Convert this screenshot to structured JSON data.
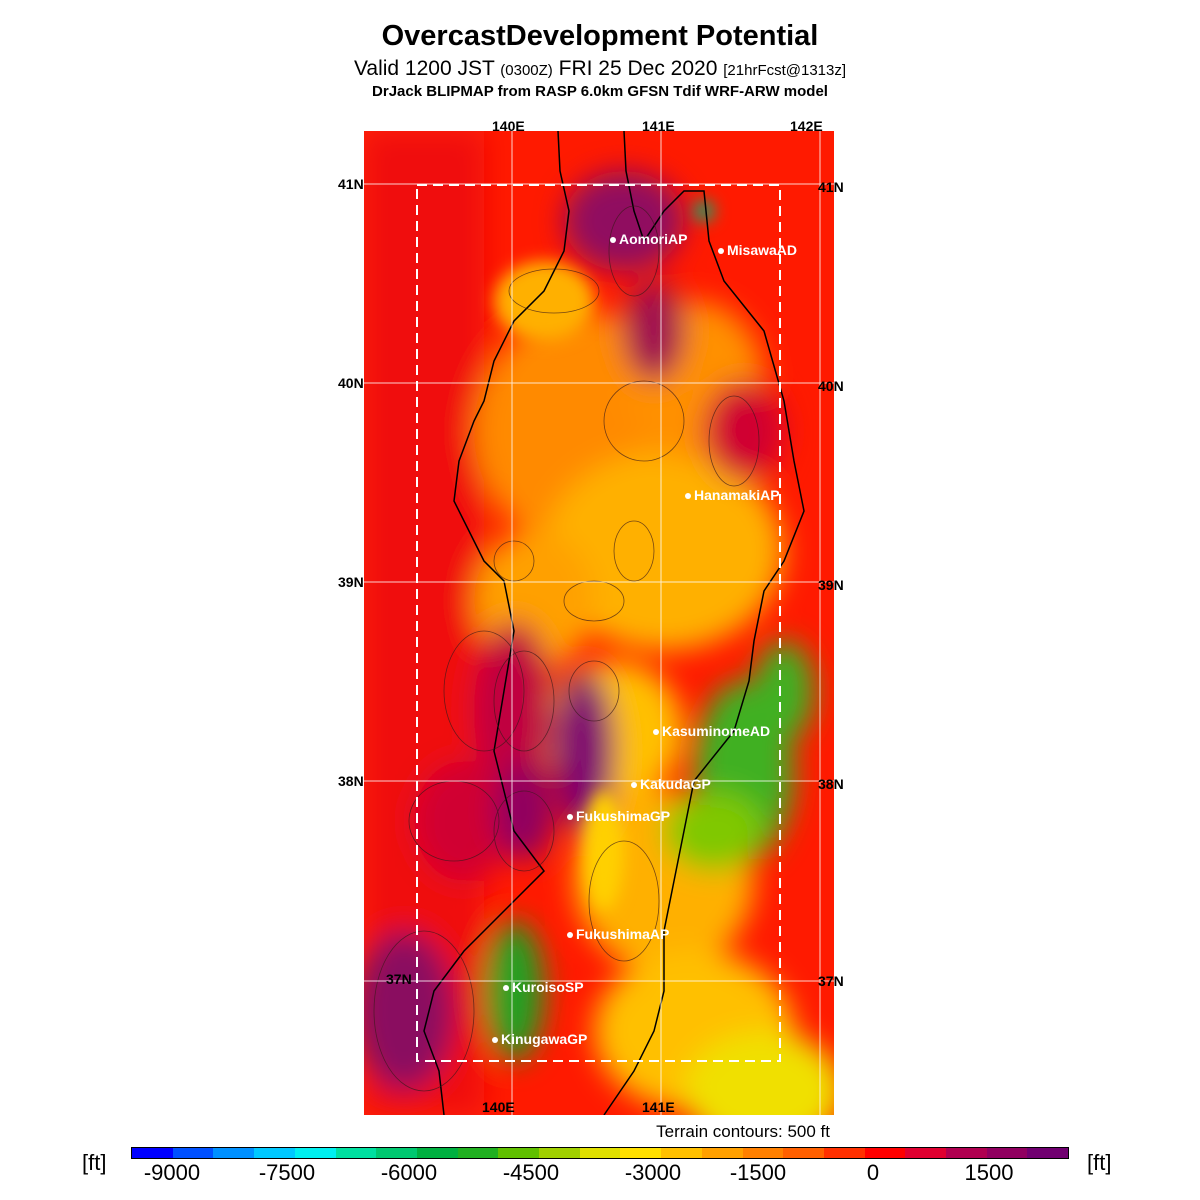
{
  "header": {
    "title": "OvercastDevelopment Potential",
    "valid_prefix": "Valid 1200 JST",
    "valid_utc": "(0300Z)",
    "valid_date": "FRI 25 Dec 2020",
    "forecast_info": "[21hrFcst@1313z]",
    "credit": "DrJack BLIPMAP from RASP 6.0km GFSN Tdif WRF-ARW model"
  },
  "map": {
    "lon_labels_top": [
      "140E",
      "141E",
      "142E"
    ],
    "lon_labels_bottom": [
      "140E",
      "141E"
    ],
    "lat_labels_left": [
      "41N",
      "40N",
      "39N",
      "38N",
      "37N"
    ],
    "lat_labels_right": [
      "41N",
      "40N",
      "39N",
      "38N",
      "37N"
    ],
    "stations": [
      "AomoriAP",
      "MisawaAD",
      "HanamakiAP",
      "KasuminomeAD",
      "KakudaGP",
      "FukushimaGP",
      "FukushimaAP",
      "KuroisoSP",
      "KinugawaGP"
    ],
    "terrain_note": "Terrain contours: 500 ft"
  },
  "colorbar": {
    "unit_left": "[ft]",
    "unit_right": "[ft]",
    "ticks": [
      "-9000",
      "-7500",
      "-6000",
      "-4500",
      "-3000",
      "-1500",
      "0",
      "1500"
    ],
    "colors": [
      "#0000ff",
      "#0050ff",
      "#0090ff",
      "#00c8ff",
      "#00f0f0",
      "#00e0a0",
      "#00c870",
      "#00b040",
      "#20b020",
      "#60c000",
      "#a0d000",
      "#e0e000",
      "#ffe000",
      "#ffc000",
      "#ffa000",
      "#ff8000",
      "#ff6000",
      "#ff3000",
      "#ff0000",
      "#e00030",
      "#b00050",
      "#900060",
      "#700070"
    ]
  }
}
